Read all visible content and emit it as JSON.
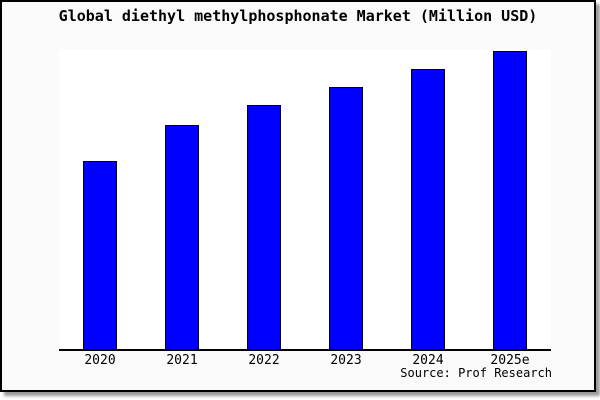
{
  "chart": {
    "title": "Global diethyl methylphosphonate Market (Million USD)",
    "source": "Source: Prof Research"
  },
  "colors": {
    "figure_background": "#fafafa",
    "plot_background": "#ffffff",
    "frame_border": "#000000",
    "axis_line": "#000000",
    "bar_fill": "#0000ff",
    "bar_border": "#000000",
    "text": "#000000",
    "shadow": "#999999"
  },
  "chart_data": {
    "type": "bar",
    "title": "Global diethyl methylphosphonate Market (Million USD)",
    "categories": [
      "2020",
      "2021",
      "2022",
      "2023",
      "2024",
      "2025e"
    ],
    "values": [
      63,
      75,
      82,
      88,
      94,
      100
    ],
    "value_note": "No y-axis or data labels shown in image; values are estimated bar heights relative to 2025e = 100",
    "xlabel": "",
    "ylabel": "",
    "ylim": [
      0,
      100
    ],
    "grid": false,
    "legend": false,
    "annotations": [
      "Source: Prof Research"
    ]
  }
}
